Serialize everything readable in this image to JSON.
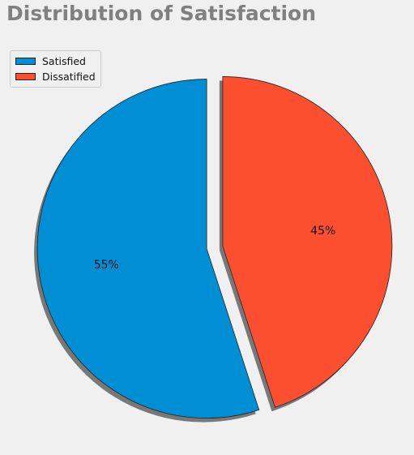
{
  "chart_data": {
    "type": "pie",
    "title": "Distribution of Satisfaction",
    "categories": [
      "Satisfied",
      "Dissatified"
    ],
    "values": [
      55,
      45
    ],
    "labels": [
      "55%",
      "45%"
    ],
    "colors": [
      "#008fd5",
      "#fc4f30"
    ],
    "exploded": [
      "Satisfied",
      "Dissatified"
    ],
    "shadow": true,
    "legend": "top-left",
    "grid": false
  }
}
